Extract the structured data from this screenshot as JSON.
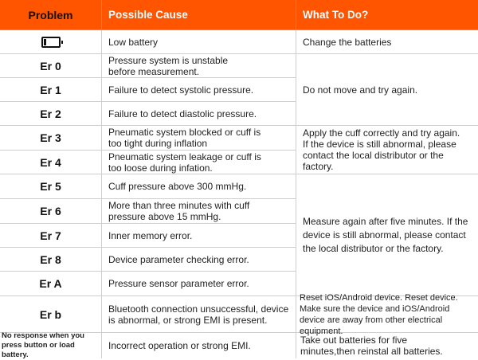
{
  "header": {
    "problem": "Problem",
    "cause": "Possible Cause",
    "action": "What To Do?"
  },
  "colors": {
    "header_bg": "#ff5400",
    "header_text": "#ffffff"
  },
  "rows": [
    {
      "problem_icon": "low-battery-icon",
      "cause": "Low battery",
      "action": "Change the batteries"
    },
    {
      "problem": "Er 0",
      "cause": "Pressure system is unstable before measurement.",
      "action": "Do not move and try again."
    },
    {
      "problem": "Er 1",
      "cause": "Failure to detect systolic pressure."
    },
    {
      "problem": "Er 2",
      "cause": "Failure to detect diastolic pressure."
    },
    {
      "problem": "Er 3",
      "cause": "Pneumatic system blocked or cuff is too tight during inflation",
      "action": "Apply the cuff correctly and try again. If the device is still abnormal, please contact the local distributor or the factory."
    },
    {
      "problem": "Er 4",
      "cause": "Pneumatic system leakage or cuff is too loose during infation."
    },
    {
      "problem": "Er 5",
      "cause": "Cuff pressure above 300 mmHg.",
      "action": "Measure again after five minutes. If the device is still abnormal, please contact the local distributor or the factory."
    },
    {
      "problem": "Er 6",
      "cause": "More than three minutes with cuff pressure above 15 mmHg."
    },
    {
      "problem": "Er 7",
      "cause": "Inner memory error."
    },
    {
      "problem": "Er 8",
      "cause": "Device parameter checking error."
    },
    {
      "problem": "Er A",
      "cause": "Pressure sensor parameter error."
    },
    {
      "problem": "Er b",
      "cause": "Bluetooth connection unsuccessful, device is abnormal, or strong EMI is present.",
      "action": "Reset iOS/Android device. Reset device. Make sure the device and iOS/Android device are away from other electrical equipment."
    },
    {
      "problem": "No response when you press button or load battery.",
      "cause": "Incorrect operation or strong EMI.",
      "action": "Take out batteries for five minutes,then reinstal all batteries."
    }
  ]
}
